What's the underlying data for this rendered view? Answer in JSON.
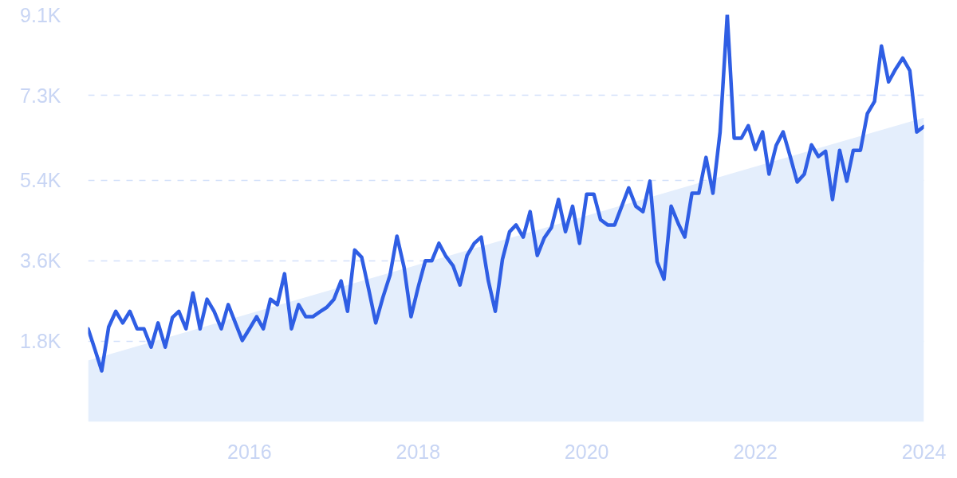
{
  "chart_data": {
    "type": "line",
    "x": [
      "2014-02",
      "2014-03",
      "2014-04",
      "2014-05",
      "2014-06",
      "2014-07",
      "2014-08",
      "2014-09",
      "2014-10",
      "2014-11",
      "2014-12",
      "2015-01",
      "2015-02",
      "2015-03",
      "2015-04",
      "2015-05",
      "2015-06",
      "2015-07",
      "2015-08",
      "2015-09",
      "2015-10",
      "2015-11",
      "2015-12",
      "2016-01",
      "2016-02",
      "2016-03",
      "2016-04",
      "2016-05",
      "2016-06",
      "2016-07",
      "2016-08",
      "2016-09",
      "2016-10",
      "2016-11",
      "2016-12",
      "2017-01",
      "2017-02",
      "2017-03",
      "2017-04",
      "2017-05",
      "2017-06",
      "2017-07",
      "2017-08",
      "2017-09",
      "2017-10",
      "2017-11",
      "2017-12",
      "2018-01",
      "2018-02",
      "2018-03",
      "2018-04",
      "2018-05",
      "2018-06",
      "2018-07",
      "2018-08",
      "2018-09",
      "2018-10",
      "2018-11",
      "2018-12",
      "2019-01",
      "2019-02",
      "2019-03",
      "2019-04",
      "2019-05",
      "2019-06",
      "2019-07",
      "2019-08",
      "2019-09",
      "2019-10",
      "2019-11",
      "2019-12",
      "2020-01",
      "2020-02",
      "2020-03",
      "2020-04",
      "2020-05",
      "2020-06",
      "2020-07",
      "2020-08",
      "2020-09",
      "2020-10",
      "2020-11",
      "2020-12",
      "2021-01",
      "2021-02",
      "2021-03",
      "2021-04",
      "2021-05",
      "2021-06",
      "2021-07",
      "2021-08",
      "2021-09",
      "2021-10",
      "2021-11",
      "2021-12",
      "2022-01",
      "2022-02",
      "2022-03",
      "2022-04",
      "2022-05",
      "2022-06",
      "2022-07",
      "2022-08",
      "2022-09",
      "2022-10",
      "2022-11",
      "2022-12",
      "2023-01",
      "2023-02",
      "2023-03",
      "2023-04",
      "2023-05",
      "2023-06",
      "2023-07",
      "2023-08",
      "2023-09",
      "2023-10",
      "2023-11",
      "2023-12",
      "2024-01"
    ],
    "series": [
      {
        "type": "area",
        "x": [
          "2014-02",
          "2024-01"
        ],
        "values": [
          1370,
          6800
        ],
        "color": "#e4eefc"
      },
      {
        "color": "#2f5ee4",
        "values": [
          2080,
          1640,
          1140,
          2120,
          2470,
          2210,
          2470,
          2080,
          2080,
          1670,
          2210,
          1670,
          2330,
          2470,
          2080,
          2880,
          2080,
          2740,
          2470,
          2080,
          2620,
          2210,
          1820,
          2080,
          2350,
          2080,
          2740,
          2620,
          3310,
          2080,
          2620,
          2350,
          2350,
          2460,
          2560,
          2740,
          3150,
          2470,
          3840,
          3680,
          2950,
          2210,
          2780,
          3280,
          4150,
          3450,
          2350,
          3010,
          3600,
          3600,
          3990,
          3700,
          3490,
          3060,
          3720,
          3990,
          4130,
          3150,
          2470,
          3630,
          4250,
          4400,
          4130,
          4700,
          3720,
          4110,
          4340,
          4970,
          4250,
          4820,
          3990,
          5090,
          5090,
          4520,
          4400,
          4400,
          4820,
          5230,
          4820,
          4700,
          5380,
          3580,
          3190,
          4820,
          4430,
          4130,
          5110,
          5110,
          5910,
          5110,
          6480,
          9100,
          6340,
          6340,
          6620,
          6090,
          6480,
          5540,
          6180,
          6480,
          5930,
          5360,
          5540,
          6190,
          5930,
          6050,
          4970,
          6070,
          5380,
          6070,
          6070,
          6890,
          7160,
          8400,
          7600,
          7890,
          8130,
          7850,
          6480,
          6600
        ]
      }
    ],
    "xlim": [
      "2014-02",
      "2024-01"
    ],
    "xticks": [
      "2016",
      "2018",
      "2020",
      "2022",
      "2024"
    ],
    "ylim": [
      0,
      9100
    ],
    "yticks": [
      {
        "value": 1800,
        "label": "1.8K"
      },
      {
        "value": 3600,
        "label": "3.6K"
      },
      {
        "value": 5400,
        "label": "5.4K"
      },
      {
        "value": 7300,
        "label": "7.3K"
      },
      {
        "value": 9100,
        "label": "9.1K"
      }
    ],
    "grid": "y",
    "line_style": "solid",
    "marker": "none"
  }
}
